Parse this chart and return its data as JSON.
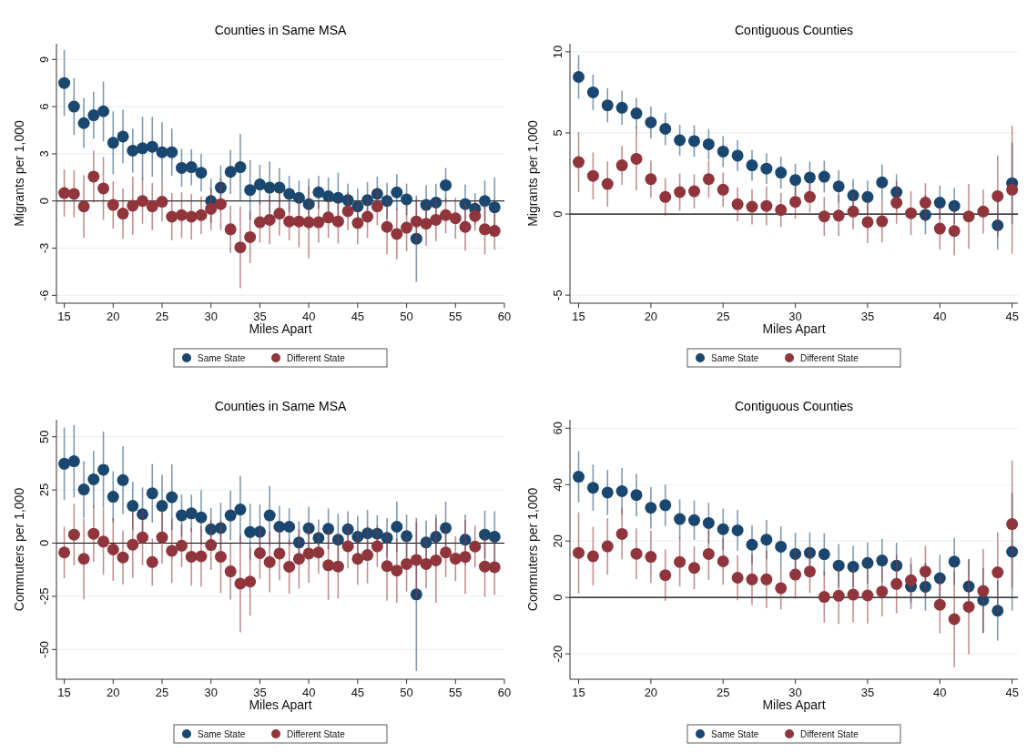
{
  "chart_data": [
    {
      "type": "scatter",
      "title": "Counties in Same MSA",
      "xlabel": "Miles Apart",
      "ylabel": "Migrants per 1,000",
      "x": [
        15,
        16,
        17,
        18,
        19,
        20,
        21,
        22,
        23,
        24,
        25,
        26,
        27,
        28,
        29,
        30,
        31,
        32,
        33,
        34,
        35,
        36,
        37,
        38,
        39,
        40,
        41,
        42,
        43,
        44,
        45,
        46,
        47,
        48,
        49,
        50,
        51,
        52,
        53,
        54,
        55,
        56,
        57,
        58,
        59
      ],
      "xlim": [
        14.2,
        60
      ],
      "xticks": [
        15,
        20,
        25,
        30,
        35,
        40,
        45,
        50,
        55,
        60
      ],
      "ylim": [
        -6.5,
        10
      ],
      "yticks": [
        -6,
        -3,
        0,
        3,
        6,
        9
      ],
      "grid": "y",
      "legend": "bottom",
      "marker": "circle",
      "ref_lines": [
        {
          "axis": "y",
          "value": 0,
          "color": "#000000"
        }
      ],
      "series": [
        {
          "name": "Same State",
          "color": "#1a476f",
          "values": [
            7.5,
            6.0,
            4.95,
            5.45,
            5.7,
            3.7,
            4.1,
            3.2,
            3.35,
            3.45,
            3.1,
            3.1,
            2.1,
            2.15,
            1.8,
            0.0,
            0.85,
            1.85,
            2.15,
            0.7,
            1.05,
            0.85,
            0.85,
            0.45,
            0.2,
            -0.2,
            0.55,
            0.3,
            0.2,
            0.05,
            -0.35,
            0.05,
            0.45,
            0.0,
            0.55,
            0.1,
            -2.4,
            -0.25,
            -0.1,
            1.0,
            null,
            -0.2,
            -0.5,
            0.0,
            -0.4
          ],
          "errors": [
            2.1,
            1.8,
            1.6,
            1.5,
            1.9,
            2.0,
            1.7,
            1.4,
            2.0,
            1.9,
            1.9,
            1.5,
            1.2,
            1.15,
            1.2,
            1.4,
            1.4,
            1.4,
            2.1,
            1.9,
            1.25,
            1.65,
            1.25,
            1.15,
            1.1,
            1.6,
            1.05,
            1.2,
            1.6,
            1.05,
            1.15,
            1.15,
            1.1,
            1.15,
            1.15,
            1.0,
            2.75,
            1.25,
            1.2,
            1.1,
            null,
            1.25,
            1.0,
            1.3,
            1.9
          ]
        },
        {
          "name": "Different State",
          "color": "#90353b",
          "values": [
            0.5,
            0.45,
            -0.35,
            1.55,
            0.8,
            -0.25,
            -0.8,
            -0.3,
            0.0,
            -0.35,
            -0.05,
            -1.0,
            -0.9,
            -1.0,
            -0.9,
            -0.5,
            -0.2,
            -1.8,
            -2.95,
            -2.3,
            -1.35,
            -1.2,
            -0.8,
            -1.3,
            -1.3,
            -1.35,
            -1.35,
            -1.05,
            -1.3,
            -0.65,
            -1.4,
            -1.0,
            -0.35,
            -1.65,
            -2.1,
            -1.7,
            -1.3,
            -1.45,
            -1.2,
            -0.9,
            -1.1,
            -1.65,
            -0.95,
            -1.8,
            -1.9
          ],
          "errors": [
            1.5,
            1.5,
            2.0,
            1.65,
            2.0,
            1.5,
            1.6,
            1.85,
            1.45,
            1.5,
            1.25,
            1.5,
            1.45,
            1.45,
            1.2,
            1.35,
            1.65,
            1.5,
            2.6,
            1.65,
            1.3,
            1.55,
            1.4,
            1.2,
            1.65,
            2.3,
            1.3,
            1.3,
            1.4,
            1.2,
            1.35,
            1.35,
            1.2,
            1.75,
            1.6,
            1.5,
            1.45,
            1.4,
            1.35,
            1.15,
            1.3,
            1.5,
            0.95,
            1.6,
            1.2
          ]
        }
      ]
    },
    {
      "type": "scatter",
      "title": "Contiguous Counties",
      "xlabel": "Miles Apart",
      "ylabel": "Migrants per 1,000",
      "x": [
        15,
        16,
        17,
        18,
        19,
        20,
        21,
        22,
        23,
        24,
        25,
        26,
        27,
        28,
        29,
        30,
        31,
        32,
        33,
        34,
        35,
        36,
        37,
        38,
        39,
        40,
        41,
        42,
        43,
        44,
        45
      ],
      "xlim": [
        14.4,
        45.4
      ],
      "xticks": [
        15,
        20,
        25,
        30,
        35,
        40,
        45
      ],
      "ylim": [
        -5.5,
        10.5
      ],
      "yticks": [
        -5,
        0,
        5,
        10
      ],
      "grid": "y",
      "legend": "bottom",
      "marker": "circle",
      "ref_lines": [
        {
          "axis": "y",
          "value": 0,
          "color": "#000000"
        }
      ],
      "series": [
        {
          "name": "Same State",
          "color": "#1a476f",
          "values": [
            8.45,
            7.5,
            6.7,
            6.55,
            6.2,
            5.65,
            5.25,
            4.55,
            4.5,
            4.3,
            3.85,
            3.6,
            3.0,
            2.8,
            2.55,
            2.1,
            2.25,
            2.3,
            1.7,
            1.15,
            1.05,
            1.95,
            1.35,
            null,
            -0.05,
            0.7,
            0.5,
            null,
            null,
            -0.7,
            1.9
          ],
          "errors": [
            1.35,
            1.1,
            1.05,
            1.05,
            0.95,
            0.98,
            1.0,
            0.95,
            0.97,
            0.95,
            0.95,
            0.95,
            0.95,
            0.95,
            0.98,
            1.0,
            0.98,
            0.98,
            1.0,
            1.0,
            1.0,
            1.1,
            1.1,
            null,
            1.2,
            1.05,
            1.1,
            null,
            null,
            1.5,
            2.5
          ]
        },
        {
          "name": "Different State",
          "color": "#90353b",
          "values": [
            3.2,
            2.35,
            1.85,
            3.0,
            3.4,
            2.15,
            1.05,
            1.35,
            1.4,
            2.15,
            1.5,
            0.6,
            0.45,
            0.5,
            0.25,
            0.75,
            1.05,
            -0.15,
            -0.1,
            0.15,
            -0.5,
            -0.45,
            0.7,
            0.05,
            0.7,
            -0.9,
            -1.05,
            -0.15,
            0.15,
            1.1,
            1.5
          ],
          "errors": [
            1.85,
            1.45,
            1.4,
            1.2,
            1.95,
            1.15,
            1.15,
            1.15,
            1.05,
            1.15,
            1.05,
            1.05,
            1.1,
            1.2,
            1.05,
            1.05,
            0.95,
            1.2,
            1.25,
            1.1,
            1.3,
            1.3,
            1.3,
            1.35,
            1.2,
            1.3,
            1.5,
            2.0,
            1.35,
            2.5,
            3.95
          ]
        }
      ]
    },
    {
      "type": "scatter",
      "title": "Counties in Same MSA",
      "xlabel": "Miles Apart",
      "ylabel": "Commuters per 1,000",
      "x": [
        15,
        16,
        17,
        18,
        19,
        20,
        21,
        22,
        23,
        24,
        25,
        26,
        27,
        28,
        29,
        30,
        31,
        32,
        33,
        34,
        35,
        36,
        37,
        38,
        39,
        40,
        41,
        42,
        43,
        44,
        45,
        46,
        47,
        48,
        49,
        50,
        51,
        52,
        53,
        54,
        55,
        56,
        57,
        58,
        59
      ],
      "xlim": [
        14.2,
        60
      ],
      "xticks": [
        15,
        20,
        25,
        30,
        35,
        40,
        45,
        50,
        55,
        60
      ],
      "ylim": [
        -64,
        58
      ],
      "yticks": [
        -50,
        -25,
        0,
        25,
        50
      ],
      "grid": "y",
      "legend": "bottom",
      "marker": "circle",
      "ref_lines": [
        {
          "axis": "y",
          "value": 0,
          "color": "#000000"
        }
      ],
      "series": [
        {
          "name": "Same State",
          "color": "#1a476f",
          "values": [
            37.3,
            38.5,
            25.2,
            30,
            34.5,
            21.8,
            29.6,
            17.5,
            13.6,
            23.4,
            17.5,
            21.6,
            13,
            14,
            12.1,
            6.5,
            7.1,
            13,
            15.8,
            5.2,
            5.3,
            13,
            7.7,
            7.7,
            0.3,
            7,
            2.4,
            6.7,
            1.6,
            6.5,
            3,
            4.6,
            4.4,
            2.5,
            7.7,
            3.3,
            -24.1,
            0.3,
            3,
            7.1,
            null,
            1.6,
            null,
            4,
            3
          ],
          "errors": [
            17,
            17,
            13.3,
            13.3,
            18,
            12,
            16,
            11.3,
            12.6,
            13.8,
            14.7,
            15.4,
            9.9,
            8.8,
            12.7,
            10,
            11.9,
            11.6,
            15.8,
            13.3,
            12.8,
            14,
            9.9,
            8.7,
            10,
            10,
            8.7,
            9.6,
            12.2,
            8.5,
            9.8,
            11,
            8.7,
            9.3,
            11.9,
            10.2,
            36,
            10.3,
            10.4,
            12.4,
            null,
            11.9,
            null,
            11.3,
            12
          ]
        },
        {
          "name": "Different State",
          "color": "#90353b",
          "values": [
            -4.4,
            4,
            -7.4,
            4.4,
            0.7,
            -3,
            -6.7,
            -0.7,
            2.7,
            -8.9,
            2.7,
            -3.6,
            -1.2,
            -6.4,
            -6.2,
            -0.9,
            -6.4,
            -13.3,
            -19,
            -18.1,
            -4.7,
            -8.9,
            -4.9,
            -11.1,
            -7.4,
            -4.9,
            -4.4,
            -10.4,
            -11,
            -1.5,
            -7.4,
            -5.6,
            -1.5,
            -10.8,
            -12.9,
            -9.8,
            -7.9,
            -9.8,
            -8.1,
            -4.4,
            -7.3,
            -6.5,
            -1.6,
            -11,
            -11.3
          ],
          "errors": [
            12.1,
            14.4,
            19,
            13.2,
            15.6,
            14.8,
            12.7,
            15.6,
            13,
            11.1,
            12.3,
            15.2,
            10.1,
            13.6,
            14.2,
            11.7,
            17,
            13.3,
            23,
            16,
            12.1,
            14.2,
            12.5,
            12.7,
            14,
            13.7,
            9.9,
            16.3,
            15,
            10.4,
            12.2,
            13.3,
            9.8,
            16.3,
            15.2,
            13,
            17.8,
            11.5,
            19.9,
            11.6,
            10.5,
            17.4,
            9.8,
            14.2,
            13.1
          ]
        }
      ]
    },
    {
      "type": "scatter",
      "title": "Contiguous Counties",
      "xlabel": "Miles Apart",
      "ylabel": "Commuters per 1,000",
      "x": [
        15,
        16,
        17,
        18,
        19,
        20,
        21,
        22,
        23,
        24,
        25,
        26,
        27,
        28,
        29,
        30,
        31,
        32,
        33,
        34,
        35,
        36,
        37,
        38,
        39,
        40,
        41,
        42,
        43,
        44,
        45
      ],
      "xlim": [
        14.4,
        45.4
      ],
      "xticks": [
        15,
        20,
        25,
        30,
        35,
        40,
        45
      ],
      "ylim": [
        -29,
        63
      ],
      "yticks": [
        -20,
        0,
        20,
        40,
        60
      ],
      "grid": "y",
      "legend": "bottom",
      "marker": "circle",
      "ref_lines": [
        {
          "axis": "y",
          "value": 0,
          "color": "#000000"
        }
      ],
      "series": [
        {
          "name": "Same State",
          "color": "#1a476f",
          "values": [
            42.8,
            38.9,
            37.2,
            37.7,
            36.3,
            31.8,
            32.7,
            27.8,
            27.4,
            26.4,
            24.2,
            23.8,
            18.7,
            20.5,
            18,
            15.4,
            15.8,
            15.3,
            11.3,
            10.9,
            12.2,
            13.1,
            11.3,
            3.9,
            3.8,
            6.8,
            12.7,
            3.9,
            -1,
            -4.7,
            16.2
          ],
          "errors": [
            9.1,
            8.2,
            8,
            8.2,
            7.5,
            7.4,
            7.3,
            7,
            7,
            7.2,
            7.3,
            7.2,
            6.9,
            7,
            7.2,
            7.5,
            7.3,
            7.5,
            7.6,
            7.4,
            7.3,
            7.7,
            8.1,
            8,
            8.5,
            8.3,
            8.3,
            9.6,
            11.5,
            10.6,
            20.9
          ]
        },
        {
          "name": "Different State",
          "color": "#90353b",
          "values": [
            15.8,
            14.6,
            18.1,
            22.5,
            15.5,
            14.4,
            7.9,
            12.6,
            10.5,
            15.4,
            12.8,
            7,
            6.4,
            6.4,
            3.3,
            8.1,
            9.2,
            0.2,
            0.6,
            1,
            0.7,
            2.1,
            4.8,
            6.1,
            9.2,
            -2.6,
            -7.7,
            -3.3,
            2.3,
            8.9,
            26
          ],
          "errors": [
            14.4,
            10.4,
            10,
            9,
            9,
            9.3,
            9.1,
            8.7,
            7.6,
            9.2,
            8.3,
            8,
            9,
            10.1,
            7.6,
            8.6,
            7.6,
            9.1,
            10,
            9.8,
            10,
            8.8,
            10.4,
            8,
            9.1,
            10.1,
            17,
            16.9,
            14.9,
            14.2,
            22.5
          ]
        }
      ]
    }
  ]
}
